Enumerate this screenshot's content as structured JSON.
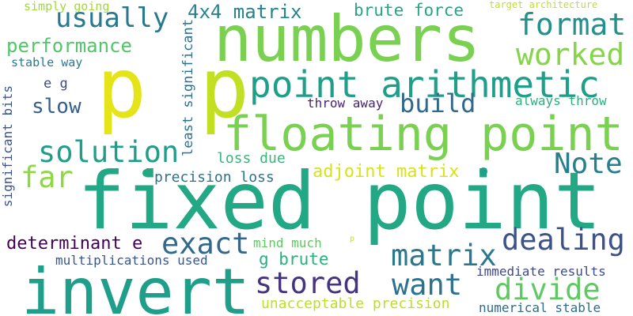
{
  "words": [
    {
      "text": "fixed point",
      "color": "#22a884"
    },
    {
      "text": "invert",
      "color": "#1f9e89"
    },
    {
      "text": "numbers",
      "color": "#7ad151"
    },
    {
      "text": "p",
      "color": "#e5e419"
    },
    {
      "text": "p",
      "color": "#c2df23"
    },
    {
      "text": "floating point",
      "color": "#7ad151"
    },
    {
      "text": "point arithmetic",
      "color": "#1f9e89"
    },
    {
      "text": "usually",
      "color": "#2a788e"
    },
    {
      "text": "format",
      "color": "#21918c"
    },
    {
      "text": "worked",
      "color": "#86d549"
    },
    {
      "text": "performance",
      "color": "#52c569"
    },
    {
      "text": "4x4 matrix",
      "color": "#26828e"
    },
    {
      "text": "brute force",
      "color": "#22a884"
    },
    {
      "text": "simply going",
      "color": "#a0da39"
    },
    {
      "text": "target architecture",
      "color": "#c2df23"
    },
    {
      "text": "stable way",
      "color": "#2a788e"
    },
    {
      "text": "e g",
      "color": "#3e4989"
    },
    {
      "text": "slow",
      "color": "#355f8d"
    },
    {
      "text": "build",
      "color": "#31688e"
    },
    {
      "text": "throw away",
      "color": "#482475"
    },
    {
      "text": "always throw",
      "color": "#2ab07f"
    },
    {
      "text": "solution",
      "color": "#1f9e89"
    },
    {
      "text": "far",
      "color": "#8fd744"
    },
    {
      "text": "Note",
      "color": "#277f8e"
    },
    {
      "text": "loss due",
      "color": "#35b779"
    },
    {
      "text": "precision loss",
      "color": "#2c728e"
    },
    {
      "text": "adjoint matrix",
      "color": "#d8e219"
    },
    {
      "text": "least significant",
      "color": "#2d708e"
    },
    {
      "text": "significant bits",
      "color": "#3b528b"
    },
    {
      "text": "dealing",
      "color": "#3b528b"
    },
    {
      "text": "exact",
      "color": "#31688e"
    },
    {
      "text": "determinant e",
      "color": "#440154"
    },
    {
      "text": "matrix",
      "color": "#2a788e"
    },
    {
      "text": "mind much",
      "color": "#5ec962"
    },
    {
      "text": "g brute",
      "color": "#2ab07f"
    },
    {
      "text": "multiplications used",
      "color": "#39568c"
    },
    {
      "text": "want",
      "color": "#2c728e"
    },
    {
      "text": "immediate results",
      "color": "#3e4989"
    },
    {
      "text": "stored",
      "color": "#46337e"
    },
    {
      "text": "divide",
      "color": "#5ec962"
    },
    {
      "text": "unacceptable precision",
      "color": "#bddf26"
    },
    {
      "text": "numerical stable",
      "color": "#306a8e"
    },
    {
      "text": "p",
      "color": "#c8e020"
    }
  ],
  "dots": [
    {
      "color": "#22a884"
    },
    {
      "color": "#1f9e89"
    }
  ]
}
